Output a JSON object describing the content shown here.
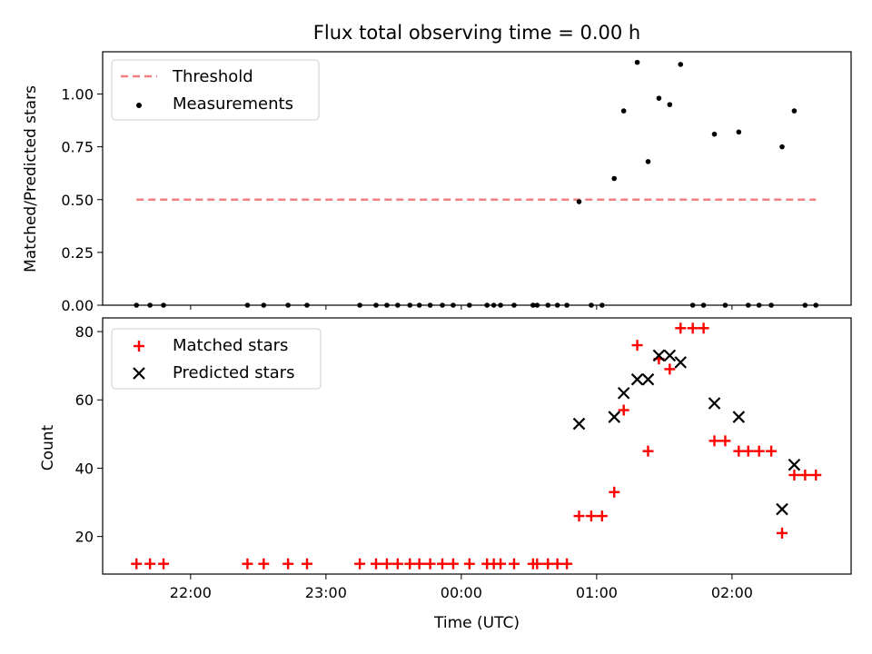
{
  "figure": {
    "title": "Flux total observing time = 0.00 h"
  },
  "chart_data": [
    {
      "type": "scatter",
      "panel": "top",
      "ylabel": "Matched/Predicted stars",
      "xlabel": "",
      "ylim": [
        0,
        1.2
      ],
      "yticks": [
        0.0,
        0.25,
        0.5,
        0.75,
        1.0
      ],
      "ytick_labels": [
        "0.00",
        "0.25",
        "0.50",
        "0.75",
        "1.00"
      ],
      "xticks_hours": [
        22,
        23,
        24,
        25,
        26
      ],
      "legend_position": "top-left",
      "legend": {
        "threshold_label": "Threshold",
        "measurements_label": "Measurements"
      },
      "threshold": {
        "value": 0.5,
        "x_start": 21.6,
        "x_end": 26.62,
        "color": "#f08080"
      },
      "series": [
        {
          "name": "Measurements",
          "color": "#000000",
          "x": [
            21.6,
            21.7,
            21.8,
            22.42,
            22.54,
            22.72,
            22.86,
            23.25,
            23.37,
            23.45,
            23.53,
            23.62,
            23.69,
            23.77,
            23.86,
            23.94,
            24.06,
            24.19,
            24.24,
            24.29,
            24.39,
            24.53,
            24.56,
            24.64,
            24.71,
            24.78,
            24.87,
            24.96,
            25.04,
            25.13,
            25.2,
            25.3,
            25.38,
            25.46,
            25.54,
            25.62,
            25.71,
            25.79,
            25.87,
            25.95,
            26.05,
            26.12,
            26.2,
            26.29,
            26.37,
            26.46,
            26.54,
            26.62
          ],
          "y": [
            0,
            0,
            0,
            0,
            0,
            0,
            0,
            0,
            0,
            0,
            0,
            0,
            0,
            0,
            0,
            0,
            0,
            0,
            0,
            0,
            0,
            0,
            0,
            0,
            0,
            0,
            0.49,
            0,
            0,
            0.6,
            0.92,
            1.15,
            0.68,
            0.98,
            0.95,
            1.14,
            0,
            0,
            0.81,
            0,
            0.82,
            0,
            0,
            0,
            0.75,
            0.92,
            0,
            0
          ]
        }
      ]
    },
    {
      "type": "scatter",
      "panel": "bottom",
      "ylabel": "Count",
      "xlabel": "Time (UTC)",
      "ylim": [
        9,
        84
      ],
      "yticks": [
        20,
        40,
        60,
        80
      ],
      "ytick_labels": [
        "20",
        "40",
        "60",
        "80"
      ],
      "xticks_hours": [
        22,
        23,
        24,
        25,
        26
      ],
      "xtick_labels": [
        "22:00",
        "23:00",
        "00:00",
        "01:00",
        "02:00"
      ],
      "legend_position": "top-left",
      "series": [
        {
          "name": "Matched stars",
          "color": "#ff0000",
          "marker": "plus",
          "x": [
            21.6,
            21.7,
            21.8,
            22.42,
            22.54,
            22.72,
            22.86,
            23.25,
            23.37,
            23.45,
            23.53,
            23.62,
            23.69,
            23.77,
            23.86,
            23.94,
            24.06,
            24.19,
            24.24,
            24.29,
            24.39,
            24.53,
            24.56,
            24.64,
            24.71,
            24.78,
            24.87,
            24.96,
            25.04,
            25.13,
            25.2,
            25.3,
            25.38,
            25.46,
            25.54,
            25.62,
            25.71,
            25.79,
            25.87,
            25.95,
            26.05,
            26.12,
            26.2,
            26.29,
            26.37,
            26.46,
            26.54,
            26.62
          ],
          "y": [
            12,
            12,
            12,
            12,
            12,
            12,
            12,
            12,
            12,
            12,
            12,
            12,
            12,
            12,
            12,
            12,
            12,
            12,
            12,
            12,
            12,
            12,
            12,
            12,
            12,
            12,
            26,
            26,
            26,
            33,
            57,
            76,
            45,
            72,
            69,
            81,
            81,
            81,
            48,
            48,
            45,
            45,
            45,
            45,
            21,
            38,
            38,
            38
          ]
        },
        {
          "name": "Predicted stars",
          "color": "#000000",
          "marker": "x",
          "x": [
            24.87,
            25.13,
            25.2,
            25.3,
            25.38,
            25.46,
            25.54,
            25.62,
            25.87,
            26.05,
            26.37,
            26.46
          ],
          "y": [
            53,
            55,
            62,
            66,
            66,
            73,
            73,
            71,
            59,
            55,
            28,
            41
          ]
        }
      ]
    }
  ]
}
